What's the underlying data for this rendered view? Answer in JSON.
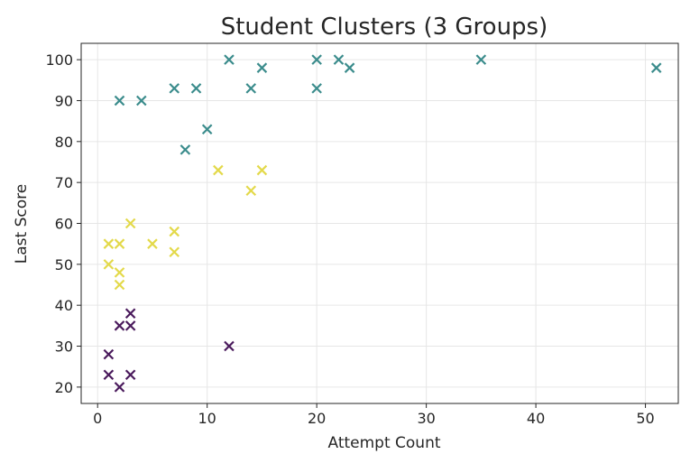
{
  "chart_data": {
    "type": "scatter",
    "title": "Student Clusters (3 Groups)",
    "xlabel": "Attempt Count",
    "ylabel": "Last Score",
    "xlim": [
      -1.5,
      53
    ],
    "ylim": [
      16,
      104
    ],
    "xticks": [
      0,
      10,
      20,
      30,
      40,
      50
    ],
    "yticks": [
      20,
      30,
      40,
      50,
      60,
      70,
      80,
      90,
      100
    ],
    "grid": true,
    "marker": "x",
    "series": [
      {
        "color": "#3b8c8c",
        "points": [
          {
            "x": 2,
            "y": 90
          },
          {
            "x": 4,
            "y": 90
          },
          {
            "x": 7,
            "y": 93
          },
          {
            "x": 8,
            "y": 78
          },
          {
            "x": 9,
            "y": 93
          },
          {
            "x": 10,
            "y": 83
          },
          {
            "x": 12,
            "y": 100
          },
          {
            "x": 14,
            "y": 93
          },
          {
            "x": 15,
            "y": 98
          },
          {
            "x": 20,
            "y": 100
          },
          {
            "x": 20,
            "y": 93
          },
          {
            "x": 22,
            "y": 100
          },
          {
            "x": 23,
            "y": 98
          },
          {
            "x": 35,
            "y": 100
          },
          {
            "x": 51,
            "y": 98
          }
        ]
      },
      {
        "color": "#e3d94a",
        "points": [
          {
            "x": 1,
            "y": 55
          },
          {
            "x": 1,
            "y": 50
          },
          {
            "x": 2,
            "y": 55
          },
          {
            "x": 2,
            "y": 48
          },
          {
            "x": 2,
            "y": 45
          },
          {
            "x": 3,
            "y": 60
          },
          {
            "x": 5,
            "y": 55
          },
          {
            "x": 7,
            "y": 58
          },
          {
            "x": 7,
            "y": 53
          },
          {
            "x": 11,
            "y": 73
          },
          {
            "x": 14,
            "y": 68
          },
          {
            "x": 15,
            "y": 73
          }
        ]
      },
      {
        "color": "#4a1a5c",
        "points": [
          {
            "x": 1,
            "y": 28
          },
          {
            "x": 1,
            "y": 23
          },
          {
            "x": 2,
            "y": 35
          },
          {
            "x": 2,
            "y": 20
          },
          {
            "x": 3,
            "y": 38
          },
          {
            "x": 3,
            "y": 35
          },
          {
            "x": 3,
            "y": 23
          },
          {
            "x": 12,
            "y": 30
          }
        ]
      }
    ]
  }
}
